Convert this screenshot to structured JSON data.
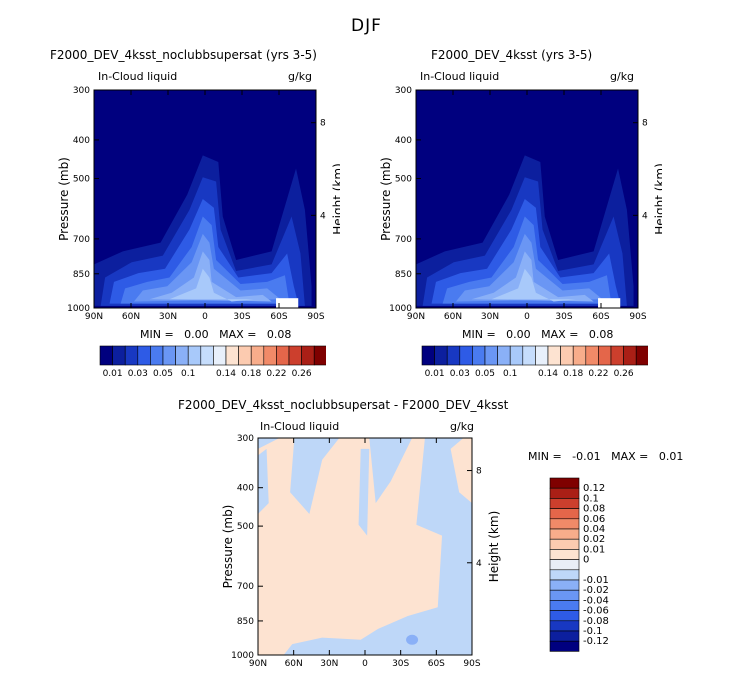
{
  "figure_title": "DJF",
  "colors": {
    "liquid": [
      "#00007f",
      "#0c1f9e",
      "#1838c2",
      "#2e5be6",
      "#4a7bf0",
      "#6a96f4",
      "#8ab0f7",
      "#a8c9fa",
      "#c6ddfc",
      "#e8f0fb",
      "#fde3d1",
      "#fccbb0",
      "#f8ad8b",
      "#f18a68",
      "#e4664a",
      "#cc3f2d",
      "#aa1f16",
      "#7f0000"
    ],
    "diff": [
      "#00007f",
      "#0c1f9e",
      "#1838c2",
      "#2e5be6",
      "#4a7bf0",
      "#6a96f4",
      "#8ab0f7",
      "#bed7f8",
      "#e9eef6",
      "#fde3d1",
      "#fccbb0",
      "#f8ad8b",
      "#f18a68",
      "#e4664a",
      "#cc3f2d",
      "#aa1f16",
      "#7f0000"
    ]
  },
  "panels": [
    {
      "title": "F2000_DEV_4ksst_noclubbsupersat (yrs 3-5)",
      "left_label": "In-Cloud liquid",
      "right_label": "g/kg",
      "y_title": "Pressure (mb)",
      "y2_title": "Height (km)",
      "stats": "MIN =   0.00   MAX =   0.08"
    },
    {
      "title": "F2000_DEV_4ksst (yrs 3-5)",
      "left_label": "In-Cloud liquid",
      "right_label": "g/kg",
      "y_title": "Pressure (mb)",
      "y2_title": "Height (km)",
      "stats": "MIN =   0.00   MAX =   0.08"
    },
    {
      "title": "F2000_DEV_4ksst_noclubbsupersat - F2000_DEV_4ksst",
      "left_label": "In-Cloud liquid",
      "right_label": "g/kg",
      "y_title": "Pressure (mb)",
      "y2_title": "Height (km)",
      "stats": "MIN =   -0.01   MAX =   0.01"
    }
  ],
  "chart_data": [
    {
      "type": "heatmap",
      "title": "F2000_DEV_4ksst_noclubbsupersat (yrs 3-5)",
      "subtitle": "In-Cloud liquid",
      "units": "g/kg",
      "ylabel": "Pressure (mb)",
      "y2label": "Height (km)",
      "x_ticks": [
        "90N",
        "60N",
        "30N",
        "0",
        "30S",
        "60S",
        "90S"
      ],
      "y_ticks": [
        "300",
        "400",
        "500",
        "700",
        "850",
        "1000"
      ],
      "y2_ticks": [
        "8",
        "4"
      ],
      "min": 0.0,
      "max": 0.08,
      "contour_levels": [
        0.01,
        0.02,
        0.03,
        0.04,
        0.05,
        0.06,
        0.07,
        0.1
      ]
    },
    {
      "type": "heatmap",
      "title": "F2000_DEV_4ksst (yrs 3-5)",
      "subtitle": "In-Cloud liquid",
      "units": "g/kg",
      "ylabel": "Pressure (mb)",
      "y2label": "Height (km)",
      "x_ticks": [
        "90N",
        "60N",
        "30N",
        "0",
        "30S",
        "60S",
        "90S"
      ],
      "y_ticks": [
        "300",
        "400",
        "500",
        "700",
        "850",
        "1000"
      ],
      "y2_ticks": [
        "8",
        "4"
      ],
      "min": 0.0,
      "max": 0.08,
      "contour_levels": [
        0.01,
        0.02,
        0.03,
        0.04,
        0.05,
        0.06,
        0.07,
        0.1
      ]
    },
    {
      "type": "heatmap",
      "title": "F2000_DEV_4ksst_noclubbsupersat - F2000_DEV_4ksst",
      "subtitle": "In-Cloud liquid",
      "units": "g/kg",
      "ylabel": "Pressure (mb)",
      "y2label": "Height (km)",
      "x_ticks": [
        "90N",
        "60N",
        "30N",
        "0",
        "30S",
        "60S",
        "90S"
      ],
      "y_ticks": [
        "300",
        "400",
        "500",
        "700",
        "850",
        "1000"
      ],
      "y2_ticks": [
        "8",
        "4"
      ],
      "min": -0.01,
      "max": 0.01,
      "contour_levels": [
        -0.12,
        -0.1,
        -0.08,
        -0.06,
        -0.04,
        -0.02,
        -0.01,
        0,
        0.01,
        0.02,
        0.04,
        0.06,
        0.08,
        0.1,
        0.12
      ]
    }
  ],
  "colorbar_liquid_labels": [
    "0.01",
    "0.03",
    "0.05",
    "0.1",
    "0.14",
    "0.18",
    "0.22",
    "0.26"
  ],
  "colorbar_diff_labels": [
    "0.12",
    "0.1",
    "0.08",
    "0.06",
    "0.04",
    "0.02",
    "0.01",
    "0",
    "-0.01",
    "-0.02",
    "-0.04",
    "-0.06",
    "-0.08",
    "-0.1",
    "-0.12"
  ]
}
